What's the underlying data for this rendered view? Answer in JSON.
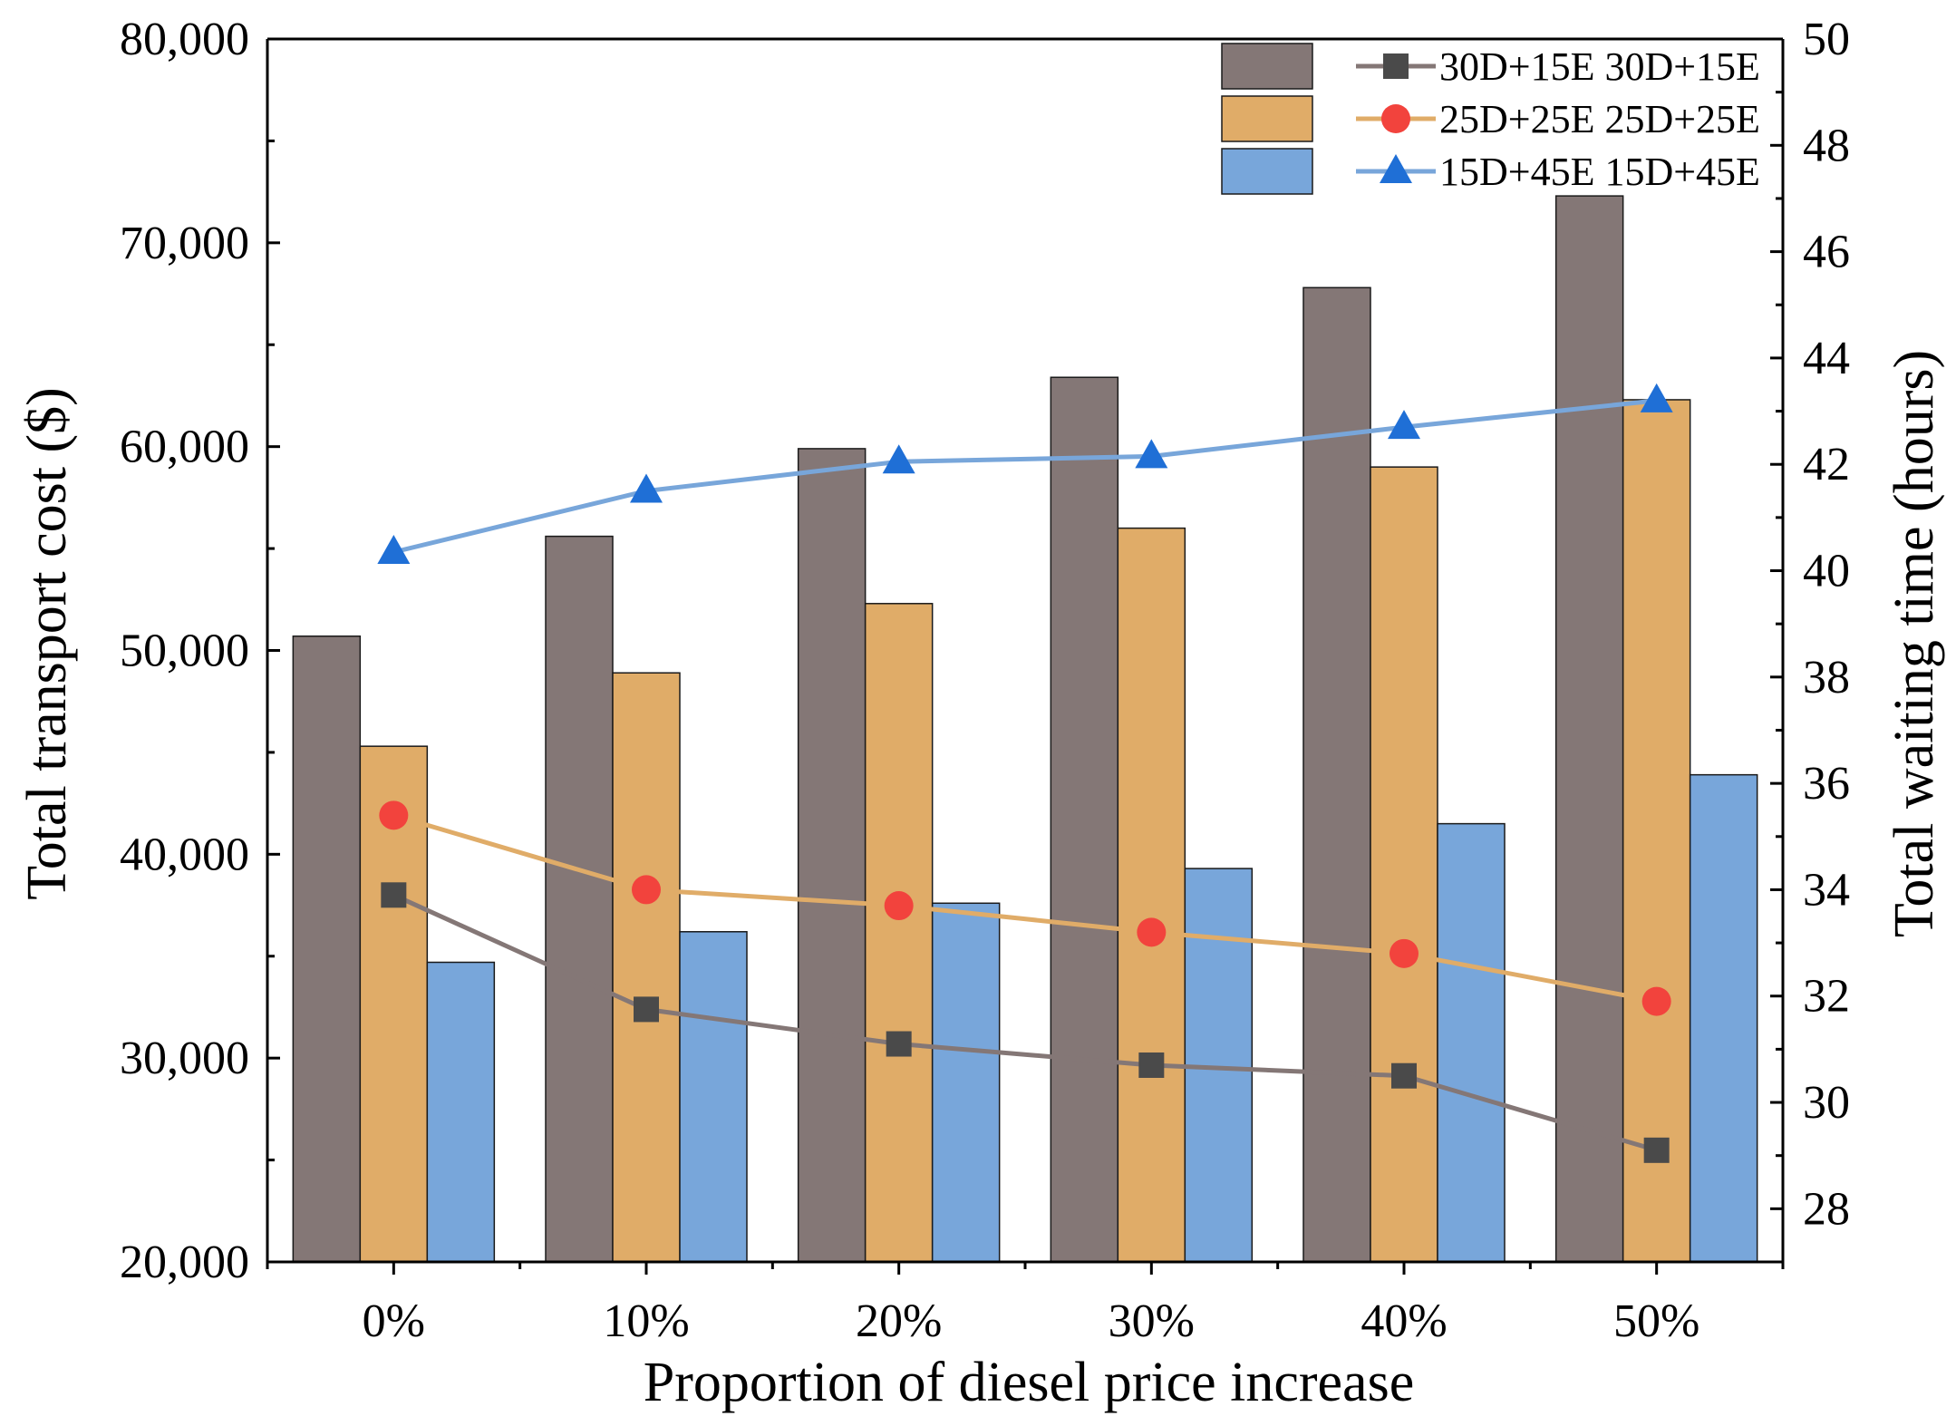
{
  "chart_data": {
    "type": "bar",
    "xlabel": "Proportion of diesel price increase",
    "ylabel_left": "Total transport cost ($)",
    "ylabel_right": "Total waiting time (hours)",
    "categories": [
      "0%",
      "10%",
      "20%",
      "30%",
      "40%",
      "50%"
    ],
    "ylim_left": [
      20000,
      80000
    ],
    "ylim_right": [
      27,
      50
    ],
    "yticks_left": [
      "20,000",
      "30,000",
      "40,000",
      "50,000",
      "60,000",
      "70,000",
      "80,000"
    ],
    "yticks_left_values": [
      20000,
      30000,
      40000,
      50000,
      60000,
      70000,
      80000
    ],
    "yticks_right": [
      "28",
      "30",
      "32",
      "34",
      "36",
      "38",
      "40",
      "42",
      "44",
      "46",
      "48",
      "50"
    ],
    "yticks_right_values": [
      28,
      30,
      32,
      34,
      36,
      38,
      40,
      42,
      44,
      46,
      48,
      50
    ],
    "bar_series": [
      {
        "name": "30D+15E",
        "color": "#847776",
        "values": [
          50700,
          55600,
          59900,
          63400,
          67800,
          72300
        ]
      },
      {
        "name": "25D+25E",
        "color": "#E0AC68",
        "values": [
          45300,
          48900,
          52300,
          56000,
          59000,
          62300
        ]
      },
      {
        "name": "15D+45E",
        "color": "#78A6DA",
        "values": [
          34700,
          36200,
          37600,
          39300,
          41500,
          43900
        ]
      }
    ],
    "line_series": [
      {
        "name": "30D+15E",
        "color": "#847776",
        "marker_color": "#4A4A4A",
        "marker": "square",
        "values": [
          33.9,
          31.75,
          31.1,
          30.7,
          30.5,
          29.1
        ]
      },
      {
        "name": "25D+25E",
        "color": "#E0AC68",
        "marker_color": "#F2433D",
        "marker": "circle",
        "values": [
          35.4,
          34.0,
          33.7,
          33.2,
          32.8,
          31.9
        ]
      },
      {
        "name": "15D+45E",
        "color": "#78A6DA",
        "marker_color": "#1F6FD6",
        "marker": "triangle",
        "values": [
          40.35,
          41.5,
          42.05,
          42.15,
          42.7,
          43.2
        ]
      }
    ],
    "legend": {
      "position": "top-right",
      "entries": [
        "30D+15E 30D+15E",
        "25D+25E 25D+25E",
        "15D+45E 15D+45E"
      ]
    }
  }
}
